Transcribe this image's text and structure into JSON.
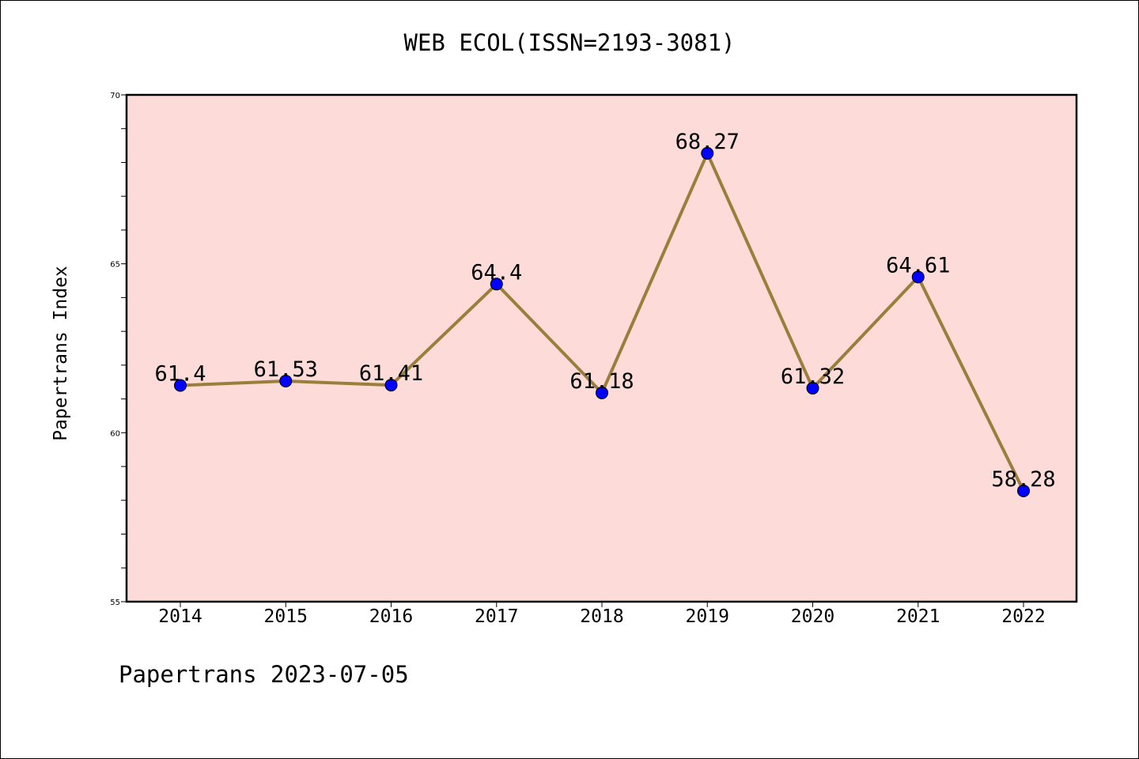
{
  "chart_data": {
    "type": "line",
    "title": "WEB ECOL(ISSN=2193-3081)",
    "ylabel": "Papertrans Index",
    "xlabel": "",
    "footer": "Papertrans 2023-07-05",
    "categories": [
      "2014",
      "2015",
      "2016",
      "2017",
      "2018",
      "2019",
      "2020",
      "2021",
      "2022"
    ],
    "series": [
      {
        "values": [
          61.4,
          61.53,
          61.41,
          64.4,
          61.18,
          68.27,
          61.32,
          64.61,
          58.28
        ],
        "labels": [
          "61.4",
          "61.53",
          "61.41",
          "64.4",
          "61.18",
          "68.27",
          "61.32",
          "64.61",
          "58.28"
        ]
      }
    ],
    "ylim": [
      55,
      70
    ],
    "yticks": [
      55,
      60,
      65,
      70
    ],
    "grid": false,
    "colors": {
      "plot_background": "#fddbd8",
      "line": "#9a7e3c",
      "marker": "#0000ff"
    }
  }
}
